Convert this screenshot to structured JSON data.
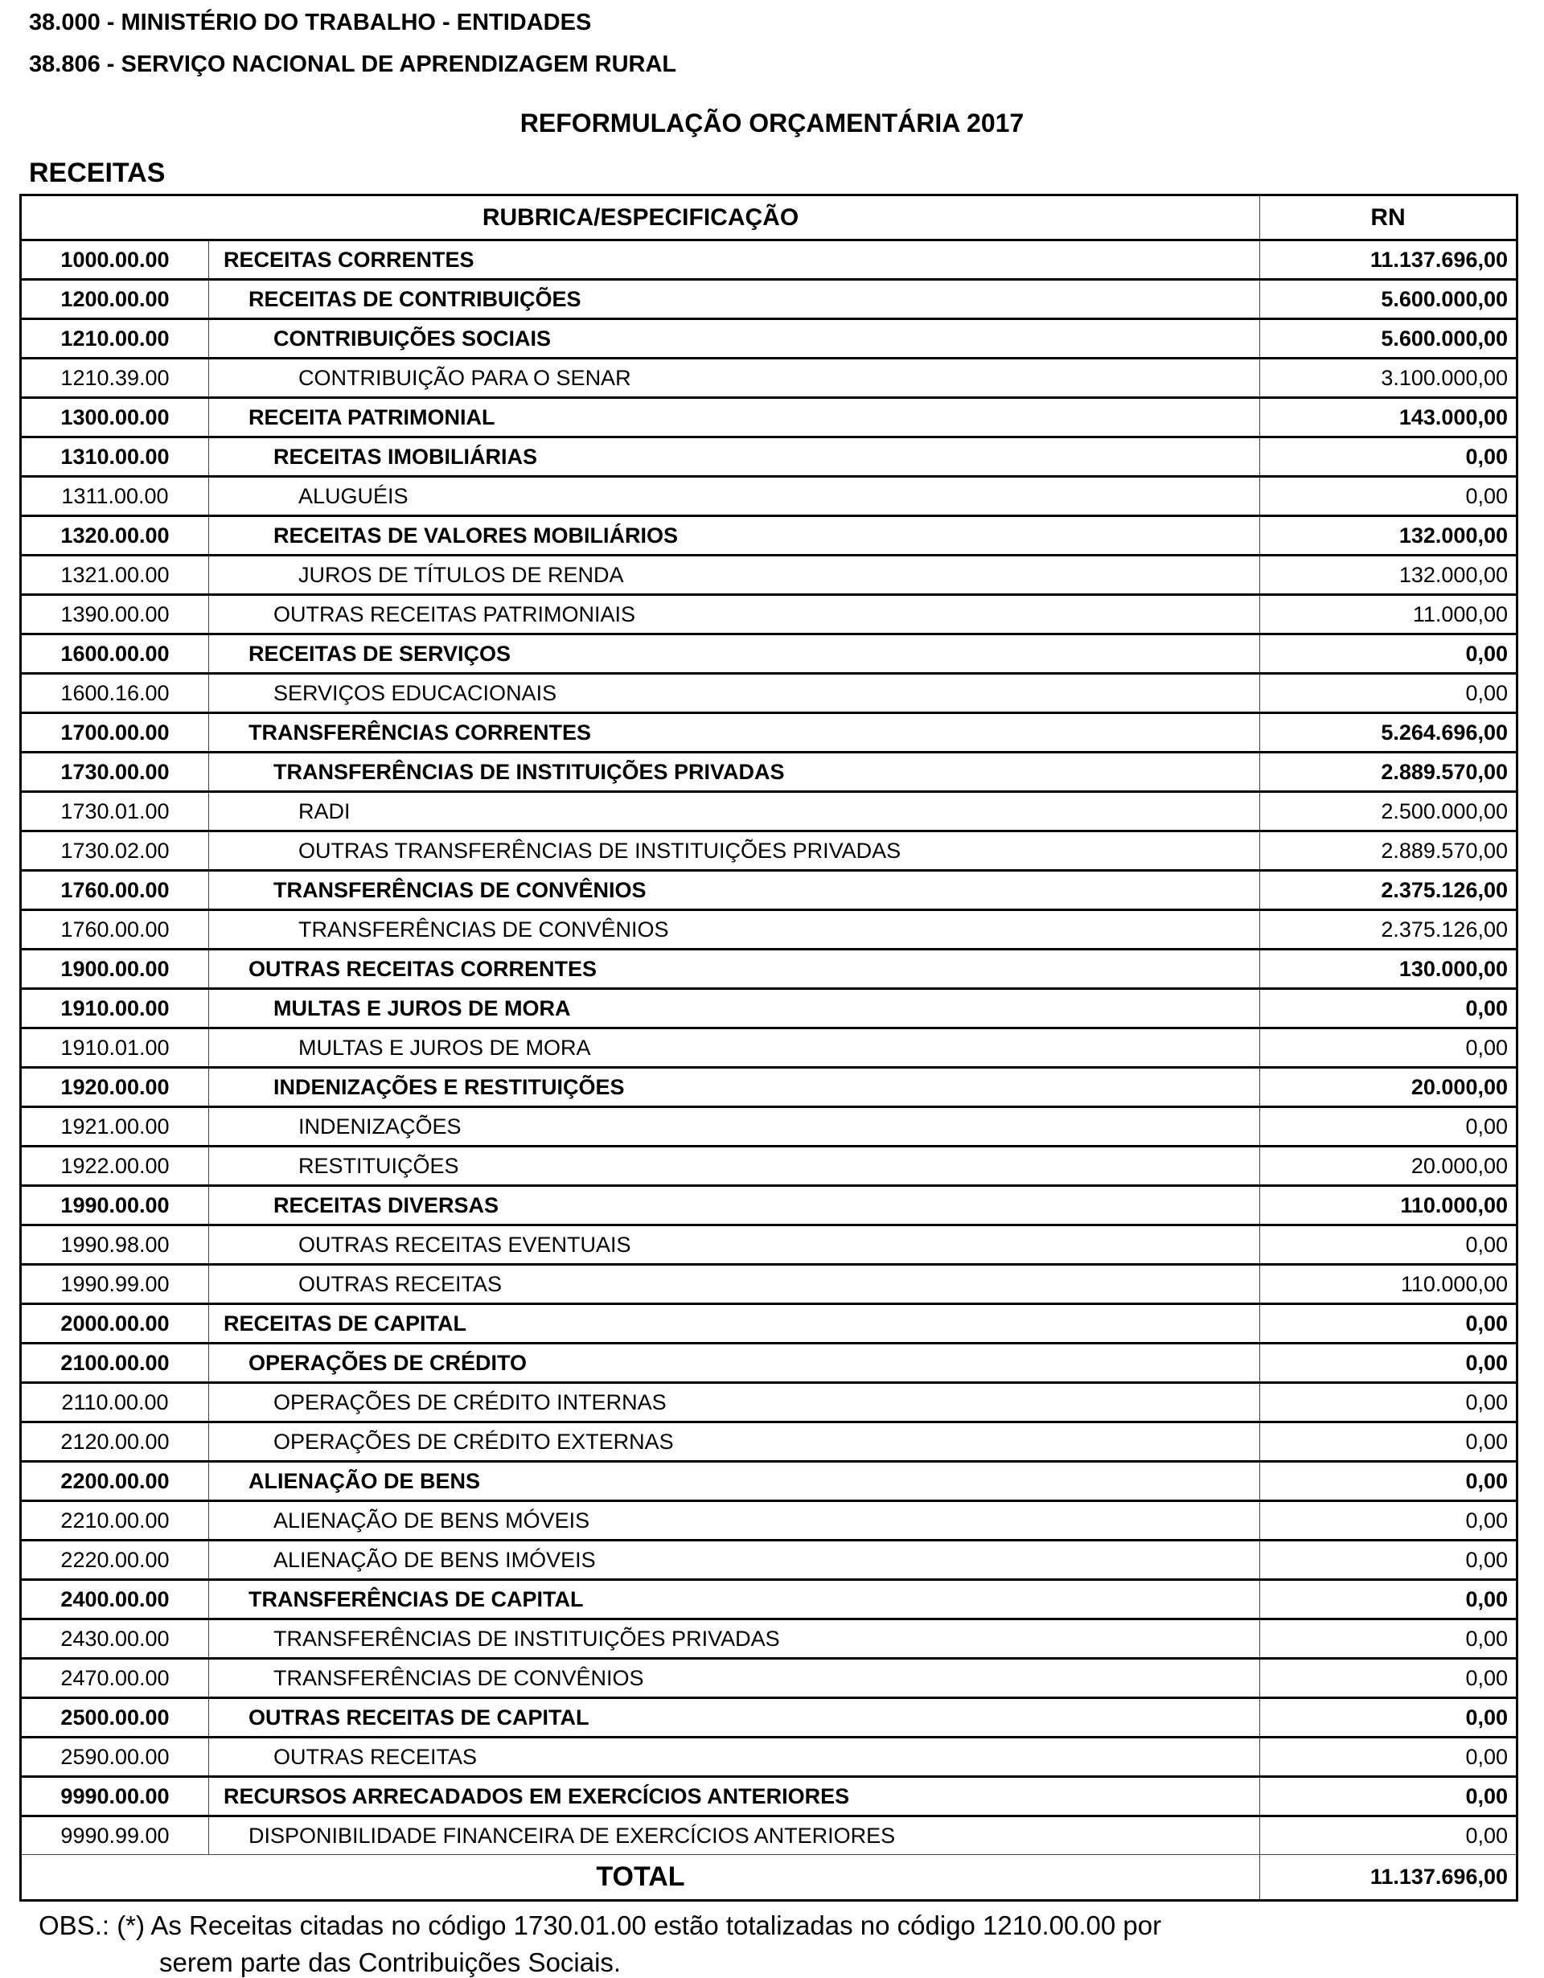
{
  "header": {
    "line1": "38.000 - MINISTÉRIO DO TRABALHO - ENTIDADES",
    "line2": "38.806 - SERVIÇO NACIONAL DE APRENDIZAGEM RURAL",
    "title": "REFORMULAÇÃO ORÇAMENTÁRIA 2017",
    "section": "RECEITAS"
  },
  "table": {
    "columns": [
      "RUBRICA/ESPECIFICAÇÃO",
      "RN"
    ],
    "rows": [
      {
        "code": "1000.00.00",
        "desc": "RECEITAS CORRENTES",
        "value": "11.137.696,00",
        "level": 0,
        "bold": true
      },
      {
        "code": "1200.00.00",
        "desc": "RECEITAS DE CONTRIBUIÇÕES",
        "value": "5.600.000,00",
        "level": 1,
        "bold": true
      },
      {
        "code": "1210.00.00",
        "desc": "CONTRIBUIÇÕES SOCIAIS",
        "value": "5.600.000,00",
        "level": 2,
        "bold": true
      },
      {
        "code": "1210.39.00",
        "desc": "CONTRIBUIÇÃO PARA O SENAR",
        "value": "3.100.000,00",
        "level": 3,
        "bold": false
      },
      {
        "code": "1300.00.00",
        "desc": "RECEITA PATRIMONIAL",
        "value": "143.000,00",
        "level": 1,
        "bold": true
      },
      {
        "code": "1310.00.00",
        "desc": "RECEITAS IMOBILIÁRIAS",
        "value": "0,00",
        "level": 2,
        "bold": true
      },
      {
        "code": "1311.00.00",
        "desc": "ALUGUÉIS",
        "value": "0,00",
        "level": 3,
        "bold": false
      },
      {
        "code": "1320.00.00",
        "desc": "RECEITAS DE VALORES MOBILIÁRIOS",
        "value": "132.000,00",
        "level": 2,
        "bold": true
      },
      {
        "code": "1321.00.00",
        "desc": "JUROS DE TÍTULOS DE RENDA",
        "value": "132.000,00",
        "level": 3,
        "bold": false
      },
      {
        "code": "1390.00.00",
        "desc": "OUTRAS RECEITAS PATRIMONIAIS",
        "value": "11.000,00",
        "level": 2,
        "bold": false
      },
      {
        "code": "1600.00.00",
        "desc": "RECEITAS DE SERVIÇOS",
        "value": "0,00",
        "level": 1,
        "bold": true
      },
      {
        "code": "1600.16.00",
        "desc": "SERVIÇOS EDUCACIONAIS",
        "value": "0,00",
        "level": 2,
        "bold": false
      },
      {
        "code": "1700.00.00",
        "desc": "TRANSFERÊNCIAS CORRENTES",
        "value": "5.264.696,00",
        "level": 1,
        "bold": true
      },
      {
        "code": "1730.00.00",
        "desc": "TRANSFERÊNCIAS DE INSTITUIÇÕES PRIVADAS",
        "value": "2.889.570,00",
        "level": 2,
        "bold": true
      },
      {
        "code": "1730.01.00",
        "desc": "RADI",
        "value": "2.500.000,00",
        "level": 3,
        "bold": false
      },
      {
        "code": "1730.02.00",
        "desc": "OUTRAS TRANSFERÊNCIAS DE INSTITUIÇÕES PRIVADAS",
        "value": "2.889.570,00",
        "level": 3,
        "bold": false
      },
      {
        "code": "1760.00.00",
        "desc": "TRANSFERÊNCIAS DE CONVÊNIOS",
        "value": "2.375.126,00",
        "level": 2,
        "bold": true
      },
      {
        "code": "1760.00.00",
        "desc": "TRANSFERÊNCIAS DE CONVÊNIOS",
        "value": "2.375.126,00",
        "level": 3,
        "bold": false
      },
      {
        "code": "1900.00.00",
        "desc": "OUTRAS RECEITAS CORRENTES",
        "value": "130.000,00",
        "level": 1,
        "bold": true
      },
      {
        "code": "1910.00.00",
        "desc": "MULTAS E JUROS DE MORA",
        "value": "0,00",
        "level": 2,
        "bold": true
      },
      {
        "code": "1910.01.00",
        "desc": "MULTAS E JUROS DE MORA",
        "value": "0,00",
        "level": 3,
        "bold": false
      },
      {
        "code": "1920.00.00",
        "desc": "INDENIZAÇÕES E RESTITUIÇÕES",
        "value": "20.000,00",
        "level": 2,
        "bold": true
      },
      {
        "code": "1921.00.00",
        "desc": "INDENIZAÇÕES",
        "value": "0,00",
        "level": 3,
        "bold": false
      },
      {
        "code": "1922.00.00",
        "desc": "RESTITUIÇÕES",
        "value": "20.000,00",
        "level": 3,
        "bold": false
      },
      {
        "code": "1990.00.00",
        "desc": "RECEITAS DIVERSAS",
        "value": "110.000,00",
        "level": 2,
        "bold": true
      },
      {
        "code": "1990.98.00",
        "desc": "OUTRAS RECEITAS EVENTUAIS",
        "value": "0,00",
        "level": 3,
        "bold": false
      },
      {
        "code": "1990.99.00",
        "desc": "OUTRAS RECEITAS",
        "value": "110.000,00",
        "level": 3,
        "bold": false
      },
      {
        "code": "2000.00.00",
        "desc": "RECEITAS DE CAPITAL",
        "value": "0,00",
        "level": 0,
        "bold": true
      },
      {
        "code": "2100.00.00",
        "desc": "OPERAÇÕES DE CRÉDITO",
        "value": "0,00",
        "level": 1,
        "bold": true
      },
      {
        "code": "2110.00.00",
        "desc": "OPERAÇÕES DE CRÉDITO INTERNAS",
        "value": "0,00",
        "level": 2,
        "bold": false
      },
      {
        "code": "2120.00.00",
        "desc": "OPERAÇÕES DE CRÉDITO EXTERNAS",
        "value": "0,00",
        "level": 2,
        "bold": false
      },
      {
        "code": "2200.00.00",
        "desc": "ALIENAÇÃO DE BENS",
        "value": "0,00",
        "level": 1,
        "bold": true
      },
      {
        "code": "2210.00.00",
        "desc": "ALIENAÇÃO DE BENS MÓVEIS",
        "value": "0,00",
        "level": 2,
        "bold": false
      },
      {
        "code": "2220.00.00",
        "desc": "ALIENAÇÃO DE BENS IMÓVEIS",
        "value": "0,00",
        "level": 2,
        "bold": false
      },
      {
        "code": "2400.00.00",
        "desc": "TRANSFERÊNCIAS DE CAPITAL",
        "value": "0,00",
        "level": 1,
        "bold": true
      },
      {
        "code": "2430.00.00",
        "desc": "TRANSFERÊNCIAS DE INSTITUIÇÕES PRIVADAS",
        "value": "0,00",
        "level": 2,
        "bold": false
      },
      {
        "code": "2470.00.00",
        "desc": "TRANSFERÊNCIAS DE CONVÊNIOS",
        "value": "0,00",
        "level": 2,
        "bold": false
      },
      {
        "code": "2500.00.00",
        "desc": "OUTRAS RECEITAS DE CAPITAL",
        "value": "0,00",
        "level": 1,
        "bold": true
      },
      {
        "code": "2590.00.00",
        "desc": "OUTRAS RECEITAS",
        "value": "0,00",
        "level": 2,
        "bold": false
      },
      {
        "code": "9990.00.00",
        "desc": "RECURSOS ARRECADADOS EM EXERCÍCIOS ANTERIORES",
        "value": "0,00",
        "level": 0,
        "bold": true
      },
      {
        "code": "9990.99.00",
        "desc": "DISPONIBILIDADE FINANCEIRA DE EXERCÍCIOS ANTERIORES",
        "value": "0,00",
        "level": 1,
        "bold": false
      }
    ],
    "total": {
      "label": "TOTAL",
      "value": "11.137.696,00"
    }
  },
  "obs": {
    "line1": "OBS.: (*) As Receitas citadas no código 1730.01.00 estão totalizadas no código 1210.00.00 por",
    "line2": "serem parte das Contribuições Sociais."
  }
}
